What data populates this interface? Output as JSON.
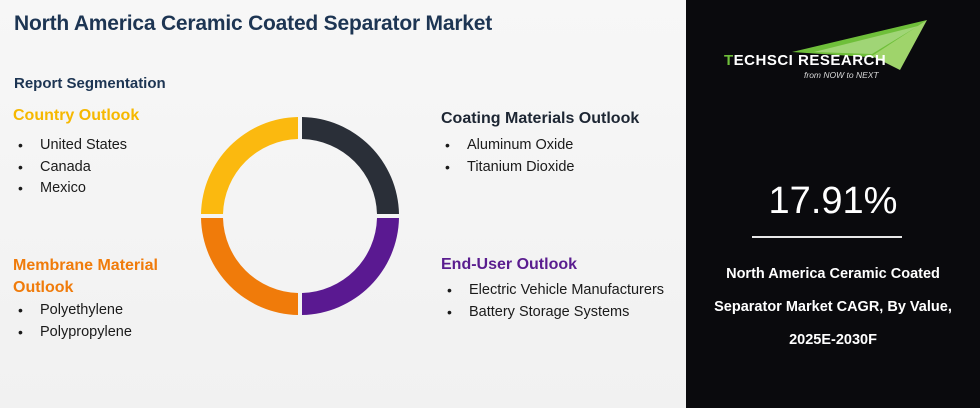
{
  "title": "North America Ceramic Coated Separator Market",
  "subtitle": "Report Segmentation",
  "segments": {
    "country": {
      "title": "Country Outlook",
      "color": "#f6b800",
      "items": [
        "United States",
        "Canada",
        "Mexico"
      ]
    },
    "coating": {
      "title": "Coating Materials Outlook",
      "color": "#1d2633",
      "items": [
        "Aluminum Oxide",
        "Titanium Dioxide"
      ]
    },
    "membrane": {
      "title_line1": "Membrane Material",
      "title_line2": "Outlook",
      "color": "#f07b0a",
      "items": [
        "Polyethylene",
        "Polypropylene"
      ]
    },
    "enduser": {
      "title": "End-User Outlook",
      "color": "#5a1d8f",
      "items": [
        "Electric Vehicle Manufacturers",
        "Battery Storage Systems"
      ]
    }
  },
  "donut_colors": {
    "top_right": "#2a2f38",
    "bottom_right": "#5a1991",
    "bottom_left": "#f07b0a",
    "top_left": "#fbb90f"
  },
  "brand": {
    "name_prefix": "T",
    "name_rest": "ECHSCI RESEARCH",
    "tagline": "from NOW to NEXT"
  },
  "stat": {
    "value": "17.91%",
    "caption_line1": "North America Ceramic Coated",
    "caption_line2": "Separator Market CAGR, By Value,",
    "caption_line3": "2025E-2030F"
  }
}
